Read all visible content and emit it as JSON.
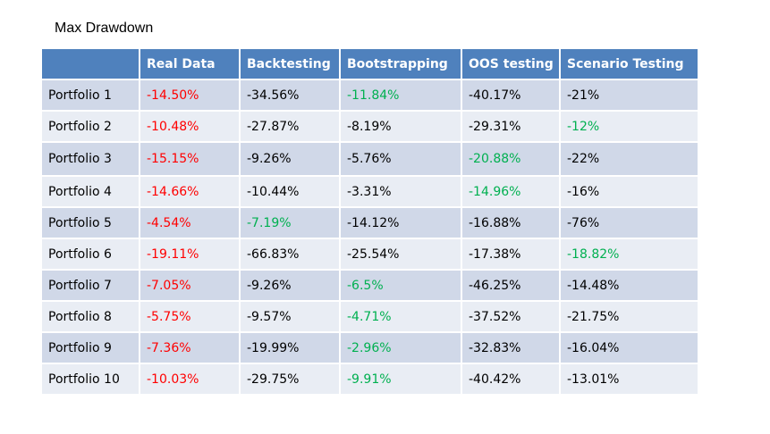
{
  "title": "Max Drawdown",
  "table": {
    "columns": [
      "",
      "Real Data",
      "Backtesting",
      "Bootstrapping",
      "OOS testing",
      "Scenario Testing"
    ],
    "rows": [
      {
        "label": "Portfolio 1",
        "values": [
          "-14.50%",
          "-34.56%",
          "-11.84%",
          "-40.17%",
          "-21%"
        ],
        "colors": [
          "red",
          "black",
          "green",
          "black",
          "black"
        ]
      },
      {
        "label": "Portfolio 2",
        "values": [
          "-10.48%",
          "-27.87%",
          "-8.19%",
          "-29.31%",
          "-12%"
        ],
        "colors": [
          "red",
          "black",
          "black",
          "black",
          "green"
        ]
      },
      {
        "label": "Portfolio 3",
        "values": [
          "-15.15%",
          "-9.26%",
          "-5.76%",
          "-20.88%",
          "-22%"
        ],
        "colors": [
          "red",
          "black",
          "black",
          "green",
          "black"
        ]
      },
      {
        "label": "Portfolio 4",
        "values": [
          "-14.66%",
          "-10.44%",
          "-3.31%",
          "-14.96%",
          "-16%"
        ],
        "colors": [
          "red",
          "black",
          "black",
          "green",
          "black"
        ]
      },
      {
        "label": "Portfolio 5",
        "values": [
          "-4.54%",
          "-7.19%",
          "-14.12%",
          "-16.88%",
          "-76%"
        ],
        "colors": [
          "red",
          "green",
          "black",
          "black",
          "black"
        ]
      },
      {
        "label": "Portfolio 6",
        "values": [
          "-19.11%",
          "-66.83%",
          "-25.54%",
          "-17.38%",
          "-18.82%"
        ],
        "colors": [
          "red",
          "black",
          "black",
          "black",
          "green"
        ]
      },
      {
        "label": "Portfolio 7",
        "values": [
          "-7.05%",
          "-9.26%",
          "-6.5%",
          "-46.25%",
          "-14.48%"
        ],
        "colors": [
          "red",
          "black",
          "green",
          "black",
          "black"
        ]
      },
      {
        "label": "Portfolio 8",
        "values": [
          "-5.75%",
          "-9.57%",
          " -4.71%",
          "-37.52%",
          "-21.75%"
        ],
        "colors": [
          "red",
          "black",
          "green",
          "black",
          "black"
        ]
      },
      {
        "label": "Portfolio 9",
        "values": [
          "-7.36%",
          "-19.99%",
          "-2.96%",
          "-32.83%",
          "-16.04%"
        ],
        "colors": [
          "red",
          "black",
          "green",
          "black",
          "black"
        ]
      },
      {
        "label": "Portfolio 10",
        "values": [
          "-10.03%",
          "-29.75%",
          "-9.91%",
          "-40.42%",
          "-13.01%"
        ],
        "colors": [
          "red",
          "black",
          "green",
          "black",
          "black"
        ]
      }
    ]
  },
  "colors": {
    "header_bg": "#4f81bd",
    "row_band_dark": "#d0d8e8",
    "row_band_light": "#e9edf4",
    "red": "#ff0000",
    "green": "#00b050"
  }
}
